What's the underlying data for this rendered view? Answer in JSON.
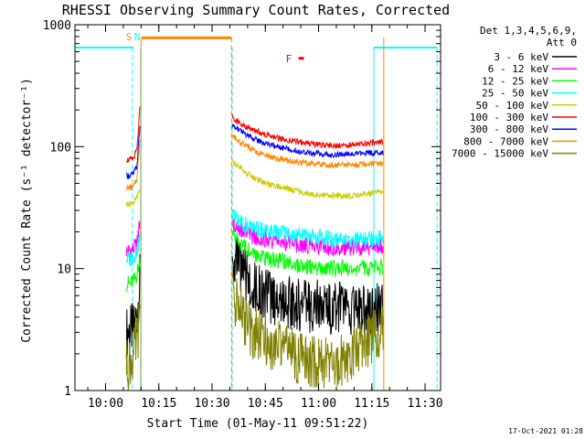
{
  "chart_data": {
    "type": "line",
    "title": "RHESSI Observing Summary Count Rates, Corrected",
    "xlabel": "Start Time (01-May-11 09:51:22)",
    "ylabel": "Corrected Count Rate (s⁻¹ detector⁻¹)",
    "yscale": "log",
    "ylim": [
      1,
      1000
    ],
    "xlim_minutes_after_start": [
      0,
      103
    ],
    "x_ticks": [
      {
        "label": "10:00",
        "minute": 8.63
      },
      {
        "label": "10:15",
        "minute": 23.63
      },
      {
        "label": "10:30",
        "minute": 38.63
      },
      {
        "label": "10:45",
        "minute": 53.63
      },
      {
        "label": "11:00",
        "minute": 68.63
      },
      {
        "label": "11:15",
        "minute": 83.63
      },
      {
        "label": "11:30",
        "minute": 98.63
      }
    ],
    "y_ticks": [
      {
        "label": "1",
        "value": 1
      },
      {
        "label": "10",
        "value": 10
      },
      {
        "label": "100",
        "value": 100
      },
      {
        "label": "1000",
        "value": 1000
      }
    ],
    "legend": {
      "placement": "right",
      "header": [
        "Det 1,3,4,5,6,9,",
        "Att 0"
      ]
    },
    "annotations": [
      {
        "label": "S",
        "minute": 16.0,
        "color": "#ff8800"
      },
      {
        "label": "N",
        "minute": 18.3,
        "color": "#00ffff"
      },
      {
        "label": "F",
        "minute": 61.0,
        "color": "#ff0000"
      }
    ],
    "timestamp": "17-Oct-2021 01:28",
    "series": [
      {
        "name": "3 - 6 keV",
        "color": "#000000",
        "seg1": [
          [
            14.5,
            3.0
          ],
          [
            15.5,
            3.1
          ],
          [
            16.5,
            3.2
          ],
          [
            17.5,
            4.2
          ],
          [
            18.3,
            8
          ]
        ],
        "seg2": [
          [
            44.3,
            12.5
          ],
          [
            46,
            10.5
          ],
          [
            48,
            8.5
          ],
          [
            50,
            7.2
          ],
          [
            53,
            6.2
          ],
          [
            56,
            5.6
          ],
          [
            60,
            5.3
          ],
          [
            64,
            5.0
          ],
          [
            68,
            4.9
          ],
          [
            72,
            4.8
          ],
          [
            76,
            4.7
          ],
          [
            80,
            4.6
          ],
          [
            84,
            4.6
          ],
          [
            86.8,
            4.6
          ]
        ]
      },
      {
        "name": "6 - 12 keV",
        "color": "#ff00ff",
        "seg1": [
          [
            14.5,
            14
          ],
          [
            15.5,
            14
          ],
          [
            16.5,
            14.5
          ],
          [
            17.5,
            16
          ],
          [
            18.3,
            25
          ]
        ],
        "seg2": [
          [
            44.3,
            24
          ],
          [
            46,
            22
          ],
          [
            48,
            20
          ],
          [
            50,
            18.5
          ],
          [
            53,
            17.5
          ],
          [
            56,
            16.8
          ],
          [
            60,
            16.2
          ],
          [
            64,
            15.6
          ],
          [
            68,
            15.2
          ],
          [
            72,
            15.0
          ],
          [
            76,
            15.0
          ],
          [
            80,
            15.0
          ],
          [
            84,
            15.0
          ],
          [
            86.8,
            15.0
          ]
        ]
      },
      {
        "name": "12 - 25 keV",
        "color": "#00ff00",
        "seg1": [
          [
            14.5,
            7.5
          ],
          [
            15.5,
            7.5
          ],
          [
            16.5,
            7.8
          ],
          [
            17.5,
            9
          ],
          [
            18.3,
            12
          ]
        ],
        "seg2": [
          [
            44.3,
            19
          ],
          [
            46,
            17
          ],
          [
            48,
            15
          ],
          [
            50,
            13.5
          ],
          [
            53,
            12.5
          ],
          [
            56,
            11.8
          ],
          [
            60,
            11.2
          ],
          [
            64,
            10.6
          ],
          [
            68,
            10.2
          ],
          [
            72,
            10.0
          ],
          [
            76,
            10.0
          ],
          [
            80,
            10.0
          ],
          [
            84,
            10.2
          ],
          [
            86.8,
            10.3
          ]
        ]
      },
      {
        "name": "25 - 50 keV",
        "color": "#00ffff",
        "seg1": [
          [
            14.5,
            12
          ],
          [
            15.5,
            12
          ],
          [
            16.5,
            12.5
          ],
          [
            17.5,
            14
          ],
          [
            18.3,
            18
          ]
        ],
        "seg2": [
          [
            44.3,
            27
          ],
          [
            46,
            25
          ],
          [
            48,
            23
          ],
          [
            50,
            21.5
          ],
          [
            53,
            20.5
          ],
          [
            56,
            19.8
          ],
          [
            60,
            19.2
          ],
          [
            64,
            18.6
          ],
          [
            68,
            18.0
          ],
          [
            72,
            17.5
          ],
          [
            76,
            17.3
          ],
          [
            80,
            17.3
          ],
          [
            84,
            17.5
          ],
          [
            86.8,
            17.8
          ]
        ]
      },
      {
        "name": "50 - 100 keV",
        "color": "#cccc00",
        "seg1": [
          [
            14.5,
            34
          ],
          [
            15.5,
            34
          ],
          [
            16.5,
            35
          ],
          [
            17.5,
            38
          ],
          [
            18.3,
            45
          ]
        ],
        "seg2": [
          [
            44.3,
            75
          ],
          [
            46,
            70
          ],
          [
            48,
            62
          ],
          [
            50,
            56
          ],
          [
            53,
            51
          ],
          [
            56,
            48
          ],
          [
            60,
            45
          ],
          [
            64,
            42
          ],
          [
            68,
            40
          ],
          [
            72,
            39.5
          ],
          [
            76,
            39.5
          ],
          [
            80,
            40
          ],
          [
            84,
            42
          ],
          [
            86.8,
            43
          ]
        ]
      },
      {
        "name": "100 - 300 keV",
        "color": "#ff0000",
        "seg1": [
          [
            14.5,
            78
          ],
          [
            15.5,
            78
          ],
          [
            16.5,
            80
          ],
          [
            17.5,
            95
          ],
          [
            18.3,
            210
          ]
        ],
        "seg2": [
          [
            44.3,
            175
          ],
          [
            46,
            160
          ],
          [
            48,
            148
          ],
          [
            50,
            138
          ],
          [
            53,
            128
          ],
          [
            56,
            120
          ],
          [
            60,
            113
          ],
          [
            64,
            108
          ],
          [
            68,
            104
          ],
          [
            72,
            102
          ],
          [
            76,
            102
          ],
          [
            80,
            104
          ],
          [
            84,
            108
          ],
          [
            86.8,
            110
          ]
        ]
      },
      {
        "name": "300 - 800 keV",
        "color": "#0000ff",
        "seg1": [
          [
            14.5,
            58
          ],
          [
            15.5,
            58
          ],
          [
            16.5,
            60
          ],
          [
            17.5,
            70
          ],
          [
            18.3,
            150
          ]
        ],
        "seg2": [
          [
            44.3,
            150
          ],
          [
            46,
            138
          ],
          [
            48,
            126
          ],
          [
            50,
            117
          ],
          [
            53,
            108
          ],
          [
            56,
            101
          ],
          [
            60,
            95
          ],
          [
            64,
            91
          ],
          [
            68,
            88
          ],
          [
            72,
            86
          ],
          [
            76,
            86
          ],
          [
            80,
            87
          ],
          [
            84,
            89
          ],
          [
            86.8,
            90
          ]
        ]
      },
      {
        "name": "800 - 7000 keV",
        "color": "#ff8800",
        "seg1": [
          [
            14.5,
            46
          ],
          [
            15.5,
            46
          ],
          [
            16.5,
            47
          ],
          [
            17.5,
            55
          ],
          [
            18.3,
            120
          ]
        ],
        "seg2": [
          [
            44.3,
            125
          ],
          [
            46,
            112
          ],
          [
            48,
            102
          ],
          [
            50,
            94
          ],
          [
            53,
            86
          ],
          [
            56,
            81
          ],
          [
            60,
            77
          ],
          [
            64,
            74
          ],
          [
            68,
            72
          ],
          [
            72,
            71
          ],
          [
            76,
            71
          ],
          [
            80,
            71
          ],
          [
            84,
            72
          ],
          [
            86.8,
            72
          ]
        ]
      },
      {
        "name": "7000 - 15000 keV",
        "color": "#808000",
        "seg1": [
          [
            14.5,
            1.6
          ],
          [
            15.5,
            1.7
          ],
          [
            16.5,
            1.9
          ],
          [
            17.5,
            2.6
          ],
          [
            18.3,
            4
          ]
        ],
        "seg2": [
          [
            44.3,
            6.0
          ],
          [
            46,
            5.0
          ],
          [
            48,
            3.8
          ],
          [
            50,
            3.0
          ],
          [
            53,
            2.6
          ],
          [
            56,
            2.4
          ],
          [
            60,
            2.1
          ],
          [
            64,
            1.8
          ],
          [
            68,
            1.7
          ],
          [
            72,
            1.7
          ],
          [
            76,
            1.8
          ],
          [
            80,
            2.2
          ],
          [
            84,
            2.8
          ],
          [
            86.8,
            3.2
          ]
        ]
      }
    ],
    "flags": {
      "cyan_level": 650,
      "cyan_segments": [
        [
          0,
          16.5
        ],
        [
          84.2,
          102
        ]
      ],
      "orange_level": 780,
      "orange_segment": [
        18.8,
        44.1
      ],
      "cyan_dashed_at": [
        16.2,
        44.3,
        102
      ],
      "cyan_solid_at": [
        18.5,
        84.2
      ],
      "orange_solid_at": [
        18.6,
        87.0
      ],
      "orange_dashed_at": [
        44.1
      ],
      "f_marker": [
        63.0,
        64.5
      ],
      "f_marker_level": 530
    }
  }
}
